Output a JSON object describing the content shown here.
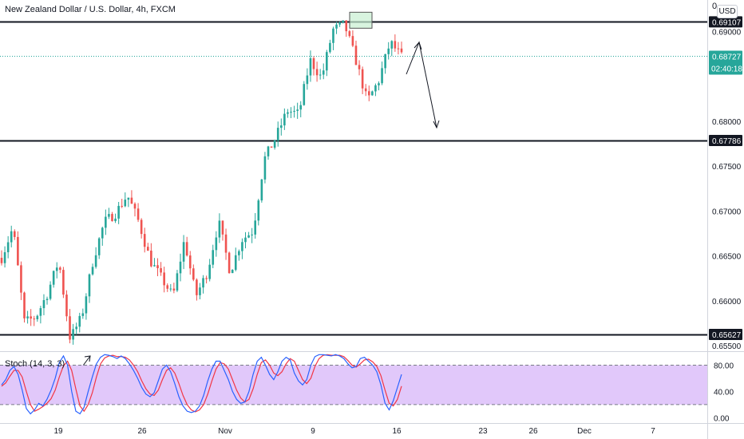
{
  "header": {
    "title": "New Zealand Dollar / U.S. Dollar, 4h, FXCM",
    "currency_button": "USD",
    "top_tick": "0"
  },
  "chart_data": {
    "type": "candlestick",
    "title": "New Zealand Dollar / U.S. Dollar, 4h, FXCM",
    "price_axis": {
      "ylim": [
        0.6544,
        0.6935
      ],
      "ticks": [
        "0.69000",
        "0.68000",
        "0.67500",
        "0.67000",
        "0.66500",
        "0.66000",
        "0.65500"
      ]
    },
    "x_axis": {
      "labels": [
        "19",
        "26",
        "Nov",
        "9",
        "16",
        "23",
        "26",
        "Dec",
        "7"
      ]
    },
    "levels": [
      {
        "price": 0.69107,
        "label": "0.69107",
        "color": "#131722"
      },
      {
        "price": 0.67786,
        "label": "0.67786",
        "color": "#131722"
      },
      {
        "price": 0.65627,
        "label": "0.65627",
        "color": "#131722"
      }
    ],
    "current_price": {
      "price": 0.68727,
      "label": "0.68727",
      "countdown": "02:40:18",
      "color": "#26a69a"
    },
    "colors": {
      "up": "#26a69a",
      "down": "#ef5350"
    },
    "path_points": [
      0.6648,
      0.6682,
      0.6576,
      0.6582,
      0.6608,
      0.6645,
      0.6558,
      0.6582,
      0.6645,
      0.6688,
      0.6698,
      0.6718,
      0.6688,
      0.6645,
      0.6625,
      0.6605,
      0.6668,
      0.6605,
      0.6632,
      0.6688,
      0.6632,
      0.6668,
      0.6678,
      0.6758,
      0.6782,
      0.6812,
      0.6808,
      0.6868,
      0.6848,
      0.6902,
      0.6908,
      0.6868,
      0.6822,
      0.6845,
      0.6888,
      0.6872
    ],
    "stochastic": {
      "label": "Stoch (14, 3, 3)",
      "ticks": [
        "80.00",
        "40.00",
        "0.00"
      ],
      "upper": 80,
      "lower": 20,
      "k_color": "#2962ff",
      "d_color": "#f23645",
      "band_color": "#e1c8fa",
      "k": [
        50,
        58,
        72,
        78,
        66,
        42,
        14,
        6,
        12,
        22,
        18,
        28,
        42,
        60,
        84,
        94,
        80,
        40,
        10,
        6,
        16,
        40,
        62,
        82,
        92,
        96,
        95,
        93,
        90,
        94,
        90,
        82,
        72,
        60,
        46,
        36,
        32,
        38,
        56,
        74,
        80,
        70,
        52,
        32,
        18,
        10,
        8,
        10,
        18,
        34,
        56,
        74,
        86,
        86,
        72,
        58,
        40,
        28,
        22,
        24,
        40,
        66,
        86,
        92,
        80,
        66,
        58,
        70,
        86,
        92,
        88,
        68,
        56,
        50,
        58,
        80,
        93,
        96,
        96,
        95,
        94,
        96,
        94,
        90,
        82,
        76,
        78,
        90,
        92,
        86,
        80,
        70,
        50,
        22,
        12,
        26,
        46,
        66
      ],
      "d": [
        48,
        53,
        63,
        72,
        72,
        62,
        40,
        20,
        10,
        13,
        17,
        22,
        29,
        42,
        62,
        79,
        86,
        72,
        44,
        18,
        10,
        20,
        38,
        62,
        82,
        91,
        94,
        95,
        93,
        93,
        92,
        88,
        80,
        70,
        56,
        44,
        36,
        34,
        42,
        58,
        72,
        76,
        68,
        52,
        34,
        20,
        12,
        9,
        12,
        20,
        36,
        56,
        74,
        84,
        82,
        74,
        58,
        42,
        30,
        24,
        28,
        44,
        66,
        84,
        88,
        80,
        68,
        64,
        70,
        82,
        90,
        86,
        72,
        58,
        52,
        60,
        78,
        90,
        95,
        96,
        95,
        95,
        95,
        93,
        87,
        80,
        77,
        82,
        88,
        89,
        85,
        78,
        64,
        42,
        22,
        18,
        28,
        48
      ]
    }
  }
}
